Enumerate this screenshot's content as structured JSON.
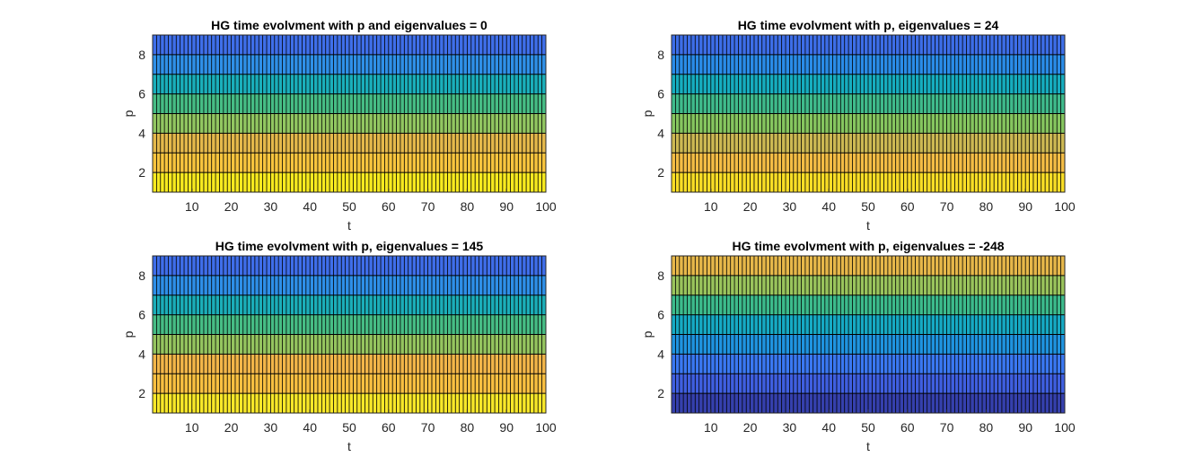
{
  "figure": {
    "background": "#ffffff",
    "grid_line_color": "#000000",
    "axis_color": "#262626"
  },
  "chart_data": [
    {
      "type": "heatmap",
      "title": "HG time evolvment with p and eigenvalues = 0",
      "xlabel": "t",
      "ylabel": "p",
      "xlim": [
        0,
        100
      ],
      "ylim": [
        1,
        9
      ],
      "xticks": [
        10,
        20,
        30,
        40,
        50,
        60,
        70,
        80,
        90,
        100
      ],
      "yticks": [
        2,
        4,
        6,
        8
      ],
      "x_columns": 100,
      "p_rows": [
        1,
        2,
        3,
        4,
        5,
        6,
        7,
        8
      ],
      "row_colors": [
        "#f7ea1f",
        "#f8c53e",
        "#e5b94b",
        "#92c761",
        "#46bd85",
        "#1aafbb",
        "#2f90e8",
        "#3f6fea"
      ],
      "trend": "bottom-warm-to-top-cool"
    },
    {
      "type": "heatmap",
      "title": "HG time evolvment with p, eigenvalues = 24",
      "xlabel": "t",
      "ylabel": "p",
      "xlim": [
        0,
        100
      ],
      "ylim": [
        1,
        9
      ],
      "xticks": [
        10,
        20,
        30,
        40,
        50,
        60,
        70,
        80,
        90,
        100
      ],
      "yticks": [
        2,
        4,
        6,
        8
      ],
      "x_columns": 100,
      "p_rows": [
        1,
        2,
        3,
        4,
        5,
        6,
        7,
        8
      ],
      "row_colors": [
        "#f9de26",
        "#f4bd45",
        "#cdb953",
        "#86c65f",
        "#3fbb8c",
        "#16adbf",
        "#2a8ce8",
        "#3d6ee8"
      ],
      "trend": "bottom-warm-to-top-cool"
    },
    {
      "type": "heatmap",
      "title": "HG time evolvment with p, eigenvalues = 145",
      "xlabel": "t",
      "ylabel": "p",
      "xlim": [
        0,
        100
      ],
      "ylim": [
        1,
        9
      ],
      "xticks": [
        10,
        20,
        30,
        40,
        50,
        60,
        70,
        80,
        90,
        100
      ],
      "yticks": [
        2,
        4,
        6,
        8
      ],
      "x_columns": 100,
      "p_rows": [
        1,
        2,
        3,
        4,
        5,
        6,
        7,
        8
      ],
      "row_colors": [
        "#f8e829",
        "#f9c041",
        "#f3b649",
        "#95c55f",
        "#46bd85",
        "#1baeb9",
        "#2e8fe8",
        "#3f6eea"
      ],
      "trend": "bottom-warm-to-top-cool"
    },
    {
      "type": "heatmap",
      "title": "HG time evolvment with p, eigenvalues = -248",
      "xlabel": "t",
      "ylabel": "p",
      "xlim": [
        0,
        100
      ],
      "ylim": [
        1,
        9
      ],
      "xticks": [
        10,
        20,
        30,
        40,
        50,
        60,
        70,
        80,
        90,
        100
      ],
      "yticks": [
        2,
        4,
        6,
        8
      ],
      "x_columns": 100,
      "p_rows": [
        1,
        2,
        3,
        4,
        5,
        6,
        7,
        8
      ],
      "row_colors": [
        "#3540ad",
        "#3f5fe0",
        "#3a78f2",
        "#1f94e0",
        "#16aac4",
        "#3cbb8c",
        "#9ac45c",
        "#e7b84a"
      ],
      "trend": "bottom-cool-to-top-warm"
    }
  ]
}
